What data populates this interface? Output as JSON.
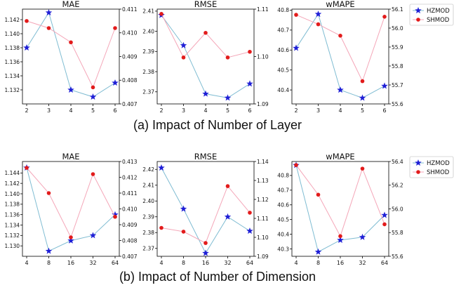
{
  "captions": {
    "a": "(a) Impact of Number of Layer",
    "b": "(b) Impact of Number of Dimension"
  },
  "legend": {
    "entries": [
      {
        "name": "HZMOD",
        "color": "#1f1fd6",
        "marker": "star",
        "line_color": "#7fbcd2"
      },
      {
        "name": "SHMOD",
        "color": "#e21b1b",
        "marker": "circle",
        "line_color": "#f4a6b8"
      }
    ],
    "placement": "right of each row"
  },
  "chart_data": [
    {
      "type": "line",
      "title": "MAE",
      "group": "a",
      "categories": [
        "2",
        "3",
        "4",
        "5",
        "6"
      ],
      "series": [
        {
          "name": "HZMOD",
          "axis": "left",
          "values": [
            1.138,
            1.143,
            1.132,
            1.131,
            1.133
          ]
        },
        {
          "name": "SHMOD",
          "axis": "right",
          "values": [
            0.4105,
            0.4102,
            0.4096,
            0.4077,
            0.4102
          ]
        }
      ],
      "yleft": {
        "lim": [
          1.13,
          1.1435
        ],
        "ticks": [
          "1.132",
          "1.134",
          "1.136",
          "1.138",
          "1.140",
          "1.142"
        ]
      },
      "yright": {
        "lim": [
          0.407,
          0.411
        ],
        "ticks": [
          "0.407",
          "0.408",
          "0.409",
          "0.410",
          "0.411"
        ]
      }
    },
    {
      "type": "line",
      "title": "RMSE",
      "group": "a",
      "categories": [
        "2",
        "3",
        "4",
        "5",
        "6"
      ],
      "series": [
        {
          "name": "HZMOD",
          "axis": "left",
          "values": [
            2.408,
            2.393,
            2.369,
            2.367,
            2.374
          ]
        },
        {
          "name": "SHMOD",
          "axis": "right",
          "values": [
            1.109,
            1.0998,
            1.105,
            1.0998,
            1.101
          ]
        }
      ],
      "yleft": {
        "lim": [
          2.364,
          2.411
        ],
        "ticks": [
          "2.37",
          "2.38",
          "2.39",
          "2.40",
          "2.41"
        ]
      },
      "yright": {
        "lim": [
          1.09,
          1.11
        ],
        "ticks": [
          "1.09",
          "1.10",
          "1.11"
        ]
      }
    },
    {
      "type": "line",
      "title": "wMAPE",
      "group": "a",
      "categories": [
        "2",
        "3",
        "4",
        "5",
        "6"
      ],
      "series": [
        {
          "name": "HZMOD",
          "axis": "left",
          "values": [
            40.61,
            40.78,
            40.4,
            40.36,
            40.42
          ]
        },
        {
          "name": "SHMOD",
          "axis": "right",
          "values": [
            56.07,
            56.02,
            55.96,
            55.72,
            56.06
          ]
        }
      ],
      "yleft": {
        "lim": [
          40.33,
          40.805
        ],
        "ticks": [
          "40.4",
          "40.5",
          "40.6",
          "40.7",
          "40.8"
        ]
      },
      "yright": {
        "lim": [
          55.6,
          56.1
        ],
        "ticks": [
          "55.6",
          "55.7",
          "55.8",
          "55.9",
          "56.0",
          "56.1"
        ]
      }
    },
    {
      "type": "line",
      "title": "MAE",
      "group": "b",
      "categories": [
        "4",
        "8",
        "16",
        "32",
        "64"
      ],
      "series": [
        {
          "name": "HZMOD",
          "axis": "left",
          "values": [
            1.145,
            1.129,
            1.131,
            1.132,
            1.136
          ]
        },
        {
          "name": "SHMOD",
          "axis": "right",
          "values": [
            0.4126,
            0.411,
            0.4082,
            0.4122,
            0.4095
          ]
        }
      ],
      "yleft": {
        "lim": [
          1.128,
          1.1462
        ],
        "ticks": [
          "1.130",
          "1.132",
          "1.134",
          "1.136",
          "1.138",
          "1.140",
          "1.142",
          "1.144"
        ]
      },
      "yright": {
        "lim": [
          0.407,
          0.413
        ],
        "ticks": [
          "0.407",
          "0.408",
          "0.409",
          "0.410",
          "0.411",
          "0.412",
          "0.413"
        ]
      }
    },
    {
      "type": "line",
      "title": "RMSE",
      "group": "b",
      "categories": [
        "4",
        "8",
        "16",
        "32",
        "64"
      ],
      "series": [
        {
          "name": "HZMOD",
          "axis": "left",
          "values": [
            2.421,
            2.395,
            2.367,
            2.39,
            2.381
          ]
        },
        {
          "name": "SHMOD",
          "axis": "right",
          "values": [
            1.105,
            1.103,
            1.097,
            1.127,
            1.113
          ]
        }
      ],
      "yleft": {
        "lim": [
          2.365,
          2.425
        ],
        "ticks": [
          "2.37",
          "2.38",
          "2.39",
          "2.40",
          "2.41",
          "2.42"
        ]
      },
      "yright": {
        "lim": [
          1.09,
          1.14
        ],
        "ticks": [
          "1.09",
          "1.10",
          "1.11",
          "1.12",
          "1.13",
          "1.14"
        ]
      }
    },
    {
      "type": "line",
      "title": "wMAPE",
      "group": "b",
      "categories": [
        "4",
        "8",
        "16",
        "32",
        "64"
      ],
      "series": [
        {
          "name": "HZMOD",
          "axis": "left",
          "values": [
            40.87,
            40.28,
            40.36,
            40.38,
            40.53
          ]
        },
        {
          "name": "SHMOD",
          "axis": "right",
          "values": [
            56.37,
            56.12,
            55.77,
            56.34,
            55.87
          ]
        }
      ],
      "yleft": {
        "lim": [
          40.25,
          40.895
        ],
        "ticks": [
          "40.3",
          "40.4",
          "40.5",
          "40.6",
          "40.7",
          "40.8"
        ]
      },
      "yright": {
        "lim": [
          55.6,
          56.4
        ],
        "ticks": [
          "55.6",
          "55.8",
          "56.0",
          "56.2",
          "56.4"
        ]
      }
    }
  ]
}
